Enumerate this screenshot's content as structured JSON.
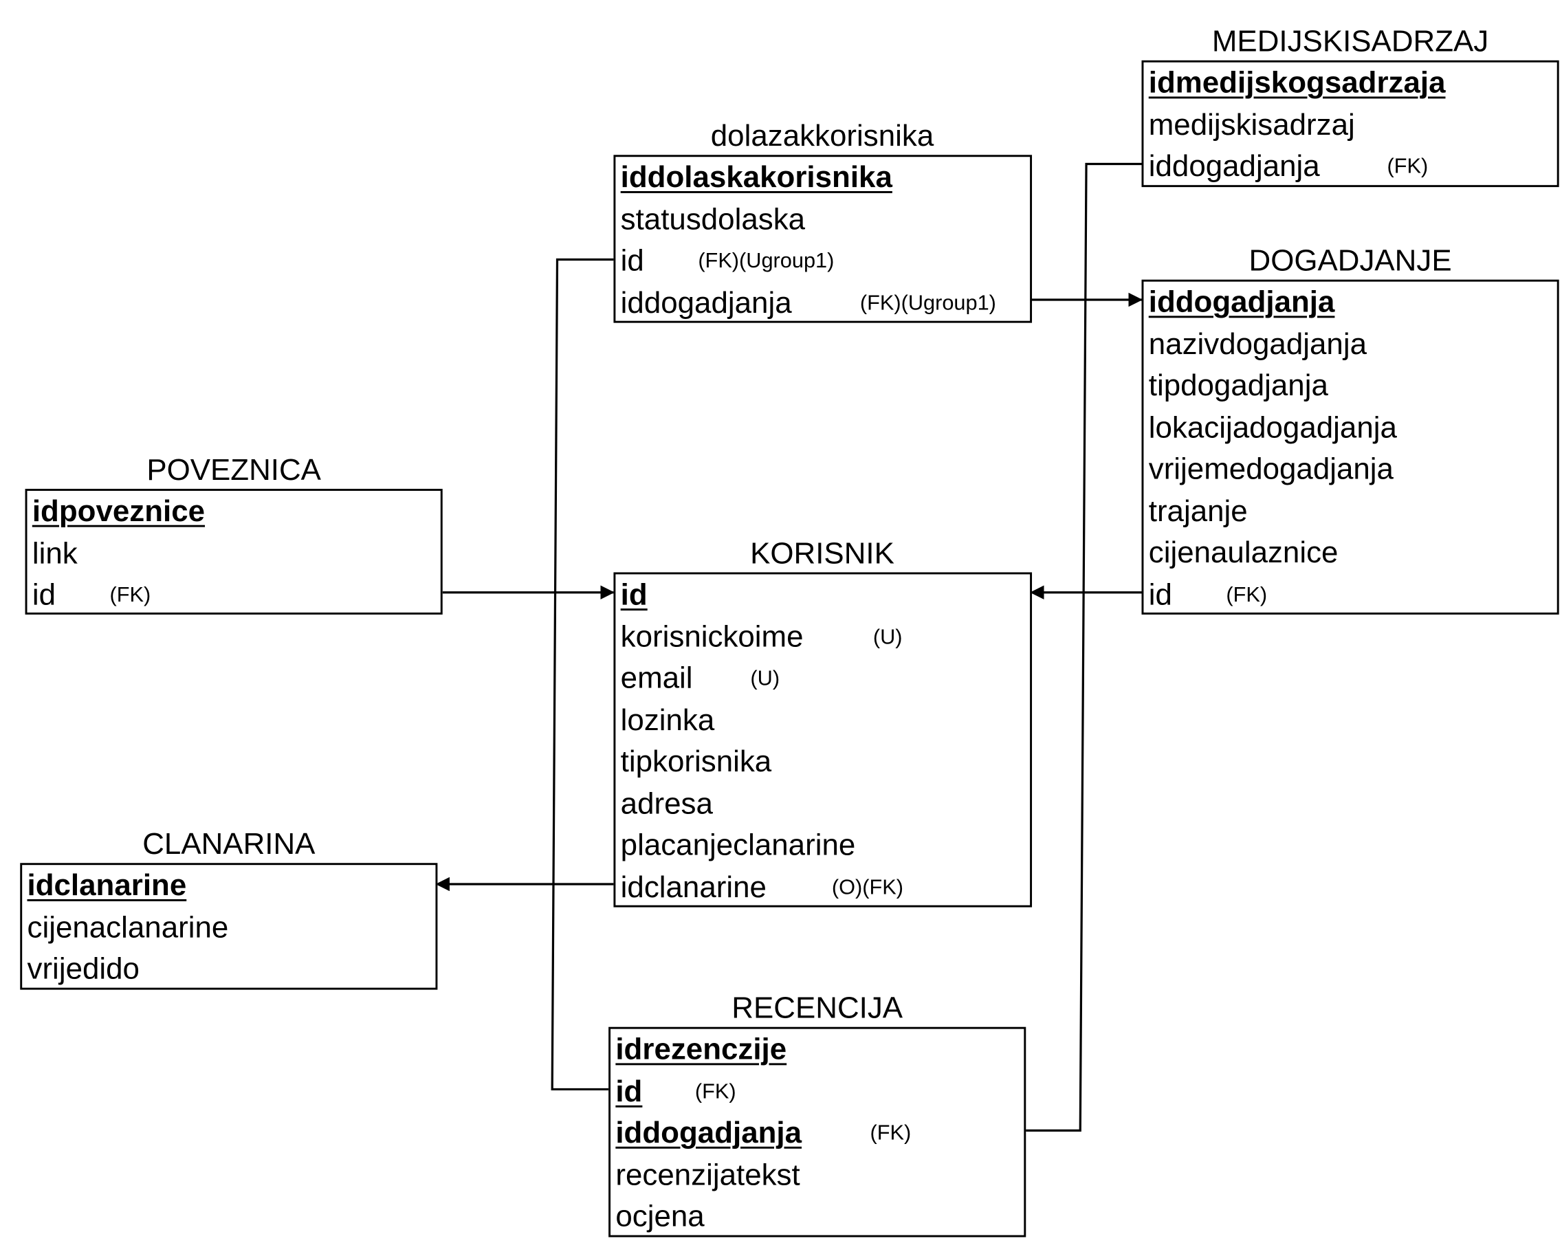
{
  "entities": {
    "poveznica": {
      "title": "POVEZNICA",
      "rows": [
        {
          "name": "idpoveznice",
          "tag": ""
        },
        {
          "name": "link",
          "tag": ""
        },
        {
          "name": "id",
          "tag": "(FK)"
        }
      ]
    },
    "clanarina": {
      "title": "CLANARINA",
      "rows": [
        {
          "name": "idclanarine",
          "tag": ""
        },
        {
          "name": "cijenaclanarine",
          "tag": ""
        },
        {
          "name": "vrijedido",
          "tag": ""
        }
      ]
    },
    "dolazakkorisnika": {
      "title": "dolazakkorisnika",
      "rows": [
        {
          "name": "iddolaskakorisnika",
          "tag": ""
        },
        {
          "name": "statusdolaska",
          "tag": ""
        },
        {
          "name": "id",
          "tag": "(FK)(Ugroup1)"
        },
        {
          "name": "iddogadjanja",
          "tag": "(FK)(Ugroup1)"
        }
      ]
    },
    "korisnik": {
      "title": "KORISNIK",
      "rows": [
        {
          "name": "id",
          "tag": ""
        },
        {
          "name": "korisnickoime",
          "tag": "(U)"
        },
        {
          "name": "email",
          "tag": "(U)"
        },
        {
          "name": "lozinka",
          "tag": ""
        },
        {
          "name": "tipkorisnika",
          "tag": ""
        },
        {
          "name": "adresa",
          "tag": ""
        },
        {
          "name": "placanjeclanarine",
          "tag": ""
        },
        {
          "name": "idclanarine",
          "tag": "(O)(FK)"
        }
      ]
    },
    "recencija": {
      "title": "RECENCIJA",
      "rows": [
        {
          "name": "idrezenczije",
          "tag": ""
        },
        {
          "name": "id",
          "tag": "(FK)"
        },
        {
          "name": "iddogadjanja",
          "tag": "(FK)"
        },
        {
          "name": "recenzijatekst",
          "tag": ""
        },
        {
          "name": "ocjena",
          "tag": ""
        }
      ]
    },
    "medijskisadrzaj": {
      "title": "MEDIJSKISADRZAJ",
      "rows": [
        {
          "name": "idmedijskogsadrzaja",
          "tag": ""
        },
        {
          "name": "medijskisadrzaj",
          "tag": ""
        },
        {
          "name": "iddogadjanja",
          "tag": "(FK)"
        }
      ]
    },
    "dogadjanje": {
      "title": "DOGADJANJE",
      "rows": [
        {
          "name": "iddogadjanja",
          "tag": ""
        },
        {
          "name": "nazivdogadjanja",
          "tag": ""
        },
        {
          "name": "tipdogadjanja",
          "tag": ""
        },
        {
          "name": "lokacijadogadjanja",
          "tag": ""
        },
        {
          "name": "vrijemedogadjanja",
          "tag": ""
        },
        {
          "name": "trajanje",
          "tag": ""
        },
        {
          "name": "cijenaulaznice",
          "tag": ""
        },
        {
          "name": "id",
          "tag": "(FK)"
        }
      ]
    }
  }
}
